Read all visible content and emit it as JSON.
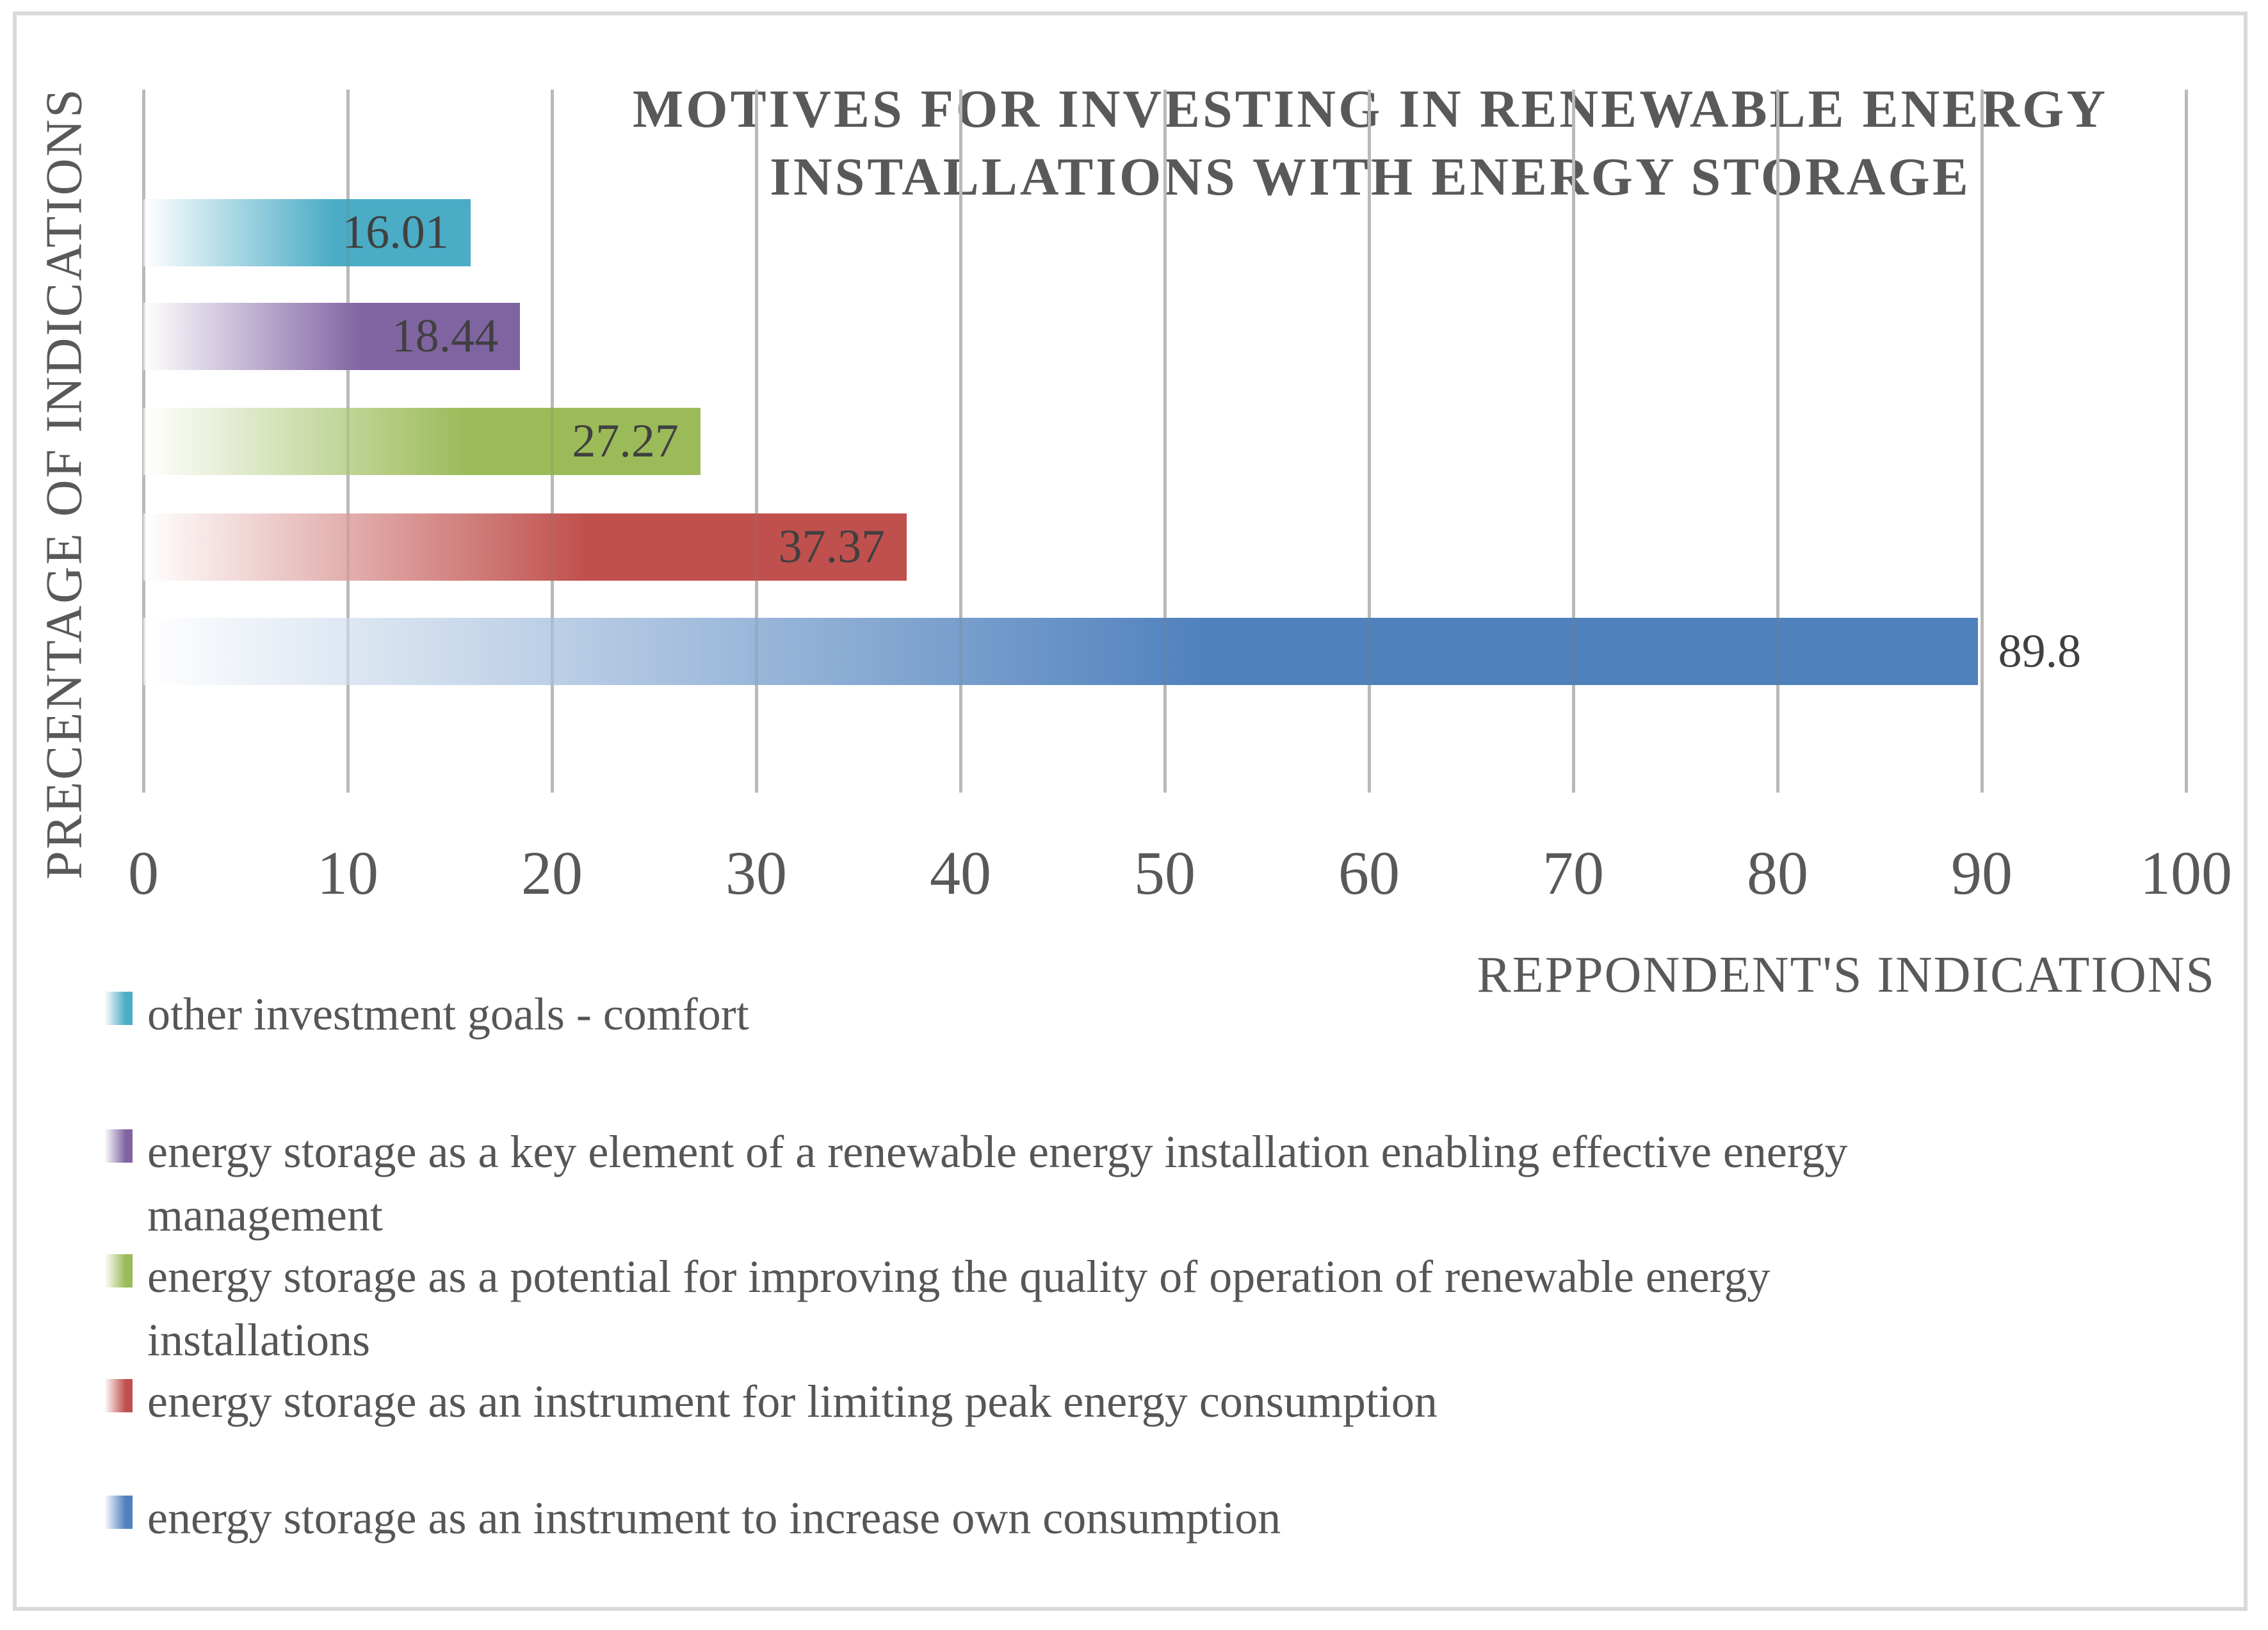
{
  "chart_data": {
    "type": "bar",
    "orientation": "horizontal",
    "title": "MOTIVES FOR INVESTING IN RENEWABLE ENERGY\nINSTALLATIONS WITH ENERGY STORAGE",
    "x_axis_label": "REPPONDENT'S INDICATIONS",
    "y_axis_label": "PRECENTAGE OF INDICATIONS",
    "xlim": [
      0,
      100
    ],
    "x_ticks": [
      "0",
      "10",
      "20",
      "30",
      "40",
      "50",
      "60",
      "70",
      "80",
      "90",
      "100"
    ],
    "grid": "vertical-only",
    "legend_position": "bottom-left",
    "series": [
      {
        "name": "other investment goals - comfort",
        "value": 16.01,
        "label": "16.01",
        "color": "#4BACC6",
        "label_placement": "inside-end"
      },
      {
        "name": "energy storage as a key element of a renewable energy installation enabling effective energy\nmanagement",
        "value": 18.44,
        "label": "18.44",
        "color": "#8064A2",
        "label_placement": "inside-end"
      },
      {
        "name": "energy storage as a potential for improving the quality of operation of renewable energy\ninstallations",
        "value": 27.27,
        "label": "27.27",
        "color": "#9BBB59",
        "label_placement": "inside-end"
      },
      {
        "name": "energy storage as an instrument for limiting peak energy consumption",
        "value": 37.37,
        "label": "37.37",
        "color": "#C0504D",
        "label_placement": "inside-end"
      },
      {
        "name": "energy storage as an instrument to increase own consumption",
        "value": 89.8,
        "label": "89.8",
        "color": "#4F81BD",
        "label_placement": "outside-end"
      }
    ]
  },
  "colors": {
    "text": "#595959",
    "data_label": "#404040",
    "gridline": "#C9C9C9",
    "border": "#D9D9D9",
    "background": "#FFFFFF"
  }
}
